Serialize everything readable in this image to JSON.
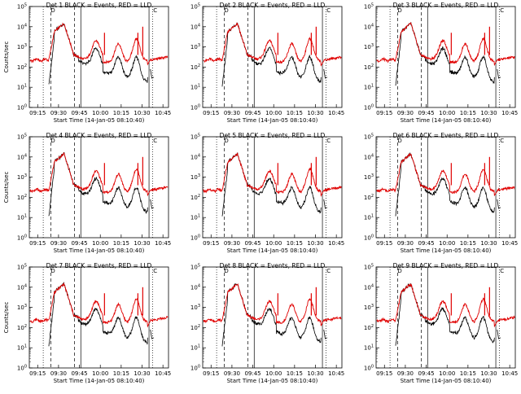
{
  "colors": {
    "events": "#000000",
    "lld": "#e00000",
    "axes": "#000000",
    "background": "#ffffff"
  },
  "chart_data": [
    {
      "type": "line",
      "title": "Det 1 BLACK = Events, RED = LLD",
      "xlabel": "Start Time (14-Jan-05 08:10:40)",
      "ylabel": "Counts/sec",
      "y_scale": "log",
      "ylim": [
        1,
        100000
      ],
      "x_ticks": [
        "09:15",
        "09:30",
        "09:45",
        "10:00",
        "10:15",
        "10:30",
        "10:45"
      ],
      "y_ticks": [
        "10^0",
        "10^1",
        "10^2",
        "10^3",
        "10^4",
        "10^5"
      ],
      "markers": [
        "D",
        "C"
      ],
      "series": [
        {
          "name": "Events",
          "color": "#000000"
        },
        {
          "name": "LLD",
          "color": "#e00000"
        }
      ]
    },
    {
      "type": "line",
      "title": "Det 2 BLACK = Events, RED = LLD",
      "xlabel": "Start Time (14-Jan-05 08:10:40)",
      "ylabel": "",
      "y_scale": "log",
      "ylim": [
        1,
        100000
      ],
      "x_ticks": [
        "09:15",
        "09:30",
        "09:45",
        "10:00",
        "10:15",
        "10:30",
        "10:45"
      ],
      "y_ticks": [
        "10^0",
        "10^1",
        "10^2",
        "10^3",
        "10^4",
        "10^5"
      ],
      "markers": [
        "D",
        "C"
      ],
      "series": [
        {
          "name": "Events",
          "color": "#000000"
        },
        {
          "name": "LLD",
          "color": "#e00000"
        }
      ]
    },
    {
      "type": "line",
      "title": "Det 3 BLACK = Events, RED = LLD",
      "xlabel": "Start Time (14-Jan-05 08:10:40)",
      "ylabel": "",
      "y_scale": "log",
      "ylim": [
        1,
        100000
      ],
      "x_ticks": [
        "09:15",
        "09:30",
        "09:45",
        "10:00",
        "10:15",
        "10:30",
        "10:45"
      ],
      "y_ticks": [
        "10^0",
        "10^1",
        "10^2",
        "10^3",
        "10^4",
        "10^5"
      ],
      "markers": [
        "D",
        "C"
      ],
      "series": [
        {
          "name": "Events",
          "color": "#000000"
        },
        {
          "name": "LLD",
          "color": "#e00000"
        }
      ]
    },
    {
      "type": "line",
      "title": "Det 4 BLACK = Events, RED = LLD",
      "xlabel": "Start Time (14-Jan-05 08:10:40)",
      "ylabel": "Counts/sec",
      "y_scale": "log",
      "ylim": [
        1,
        100000
      ],
      "x_ticks": [
        "09:15",
        "09:30",
        "09:45",
        "10:00",
        "10:15",
        "10:30",
        "10:45"
      ],
      "y_ticks": [
        "10^0",
        "10^1",
        "10^2",
        "10^3",
        "10^4",
        "10^5"
      ],
      "markers": [
        "D",
        "C"
      ],
      "series": [
        {
          "name": "Events",
          "color": "#000000"
        },
        {
          "name": "LLD",
          "color": "#e00000"
        }
      ]
    },
    {
      "type": "line",
      "title": "Det 5 BLACK = Events, RED = LLD",
      "xlabel": "Start Time (14-Jan-05 08:10:40)",
      "ylabel": "",
      "y_scale": "log",
      "ylim": [
        1,
        100000
      ],
      "x_ticks": [
        "09:15",
        "09:30",
        "09:45",
        "10:00",
        "10:15",
        "10:30",
        "10:45"
      ],
      "y_ticks": [
        "10^0",
        "10^1",
        "10^2",
        "10^3",
        "10^4",
        "10^5"
      ],
      "markers": [
        "D",
        "C"
      ],
      "series": [
        {
          "name": "Events",
          "color": "#000000"
        },
        {
          "name": "LLD",
          "color": "#e00000"
        }
      ]
    },
    {
      "type": "line",
      "title": "Det 6 BLACK = Events, RED = LLD",
      "xlabel": "Start Time (14-Jan-05 08:10:40)",
      "ylabel": "",
      "y_scale": "log",
      "ylim": [
        1,
        100000
      ],
      "x_ticks": [
        "09:15",
        "09:30",
        "09:45",
        "10:00",
        "10:15",
        "10:30",
        "10:45"
      ],
      "y_ticks": [
        "10^0",
        "10^1",
        "10^2",
        "10^3",
        "10^4",
        "10^5"
      ],
      "markers": [
        "D",
        "C"
      ],
      "series": [
        {
          "name": "Events",
          "color": "#000000"
        },
        {
          "name": "LLD",
          "color": "#e00000"
        }
      ]
    },
    {
      "type": "line",
      "title": "Det 7 BLACK = Events, RED = LLD",
      "xlabel": "Start Time (14-Jan-05 08:10:40)",
      "ylabel": "Counts/sec",
      "y_scale": "log",
      "ylim": [
        1,
        100000
      ],
      "x_ticks": [
        "09:15",
        "09:30",
        "09:45",
        "10:00",
        "10:15",
        "10:30",
        "10:45"
      ],
      "y_ticks": [
        "10^0",
        "10^1",
        "10^2",
        "10^3",
        "10^4",
        "10^5"
      ],
      "markers": [
        "D",
        "C"
      ],
      "series": [
        {
          "name": "Events",
          "color": "#000000"
        },
        {
          "name": "LLD",
          "color": "#e00000"
        }
      ]
    },
    {
      "type": "line",
      "title": "Det 8 BLACK = Events, RED = LLD",
      "xlabel": "Start Time (14-Jan-05 08:10:40)",
      "ylabel": "",
      "y_scale": "log",
      "ylim": [
        1,
        100000
      ],
      "x_ticks": [
        "09:15",
        "09:30",
        "09:45",
        "10:00",
        "10:15",
        "10:30",
        "10:45"
      ],
      "y_ticks": [
        "10^0",
        "10^1",
        "10^2",
        "10^3",
        "10^4",
        "10^5"
      ],
      "markers": [
        "D",
        "C"
      ],
      "series": [
        {
          "name": "Events",
          "color": "#000000"
        },
        {
          "name": "LLD",
          "color": "#e00000"
        }
      ]
    },
    {
      "type": "line",
      "title": "Det 9 BLACK = Events, RED = LLD",
      "xlabel": "Start Time (14-Jan-05 08:10:40)",
      "ylabel": "",
      "y_scale": "log",
      "ylim": [
        1,
        100000
      ],
      "x_ticks": [
        "09:15",
        "09:30",
        "09:45",
        "10:00",
        "10:15",
        "10:30",
        "10:45"
      ],
      "y_ticks": [
        "10^0",
        "10^1",
        "10^2",
        "10^3",
        "10^4",
        "10^5"
      ],
      "markers": [
        "D",
        "C"
      ],
      "series": [
        {
          "name": "Events",
          "color": "#000000"
        },
        {
          "name": "LLD",
          "color": "#e00000"
        }
      ]
    }
  ]
}
